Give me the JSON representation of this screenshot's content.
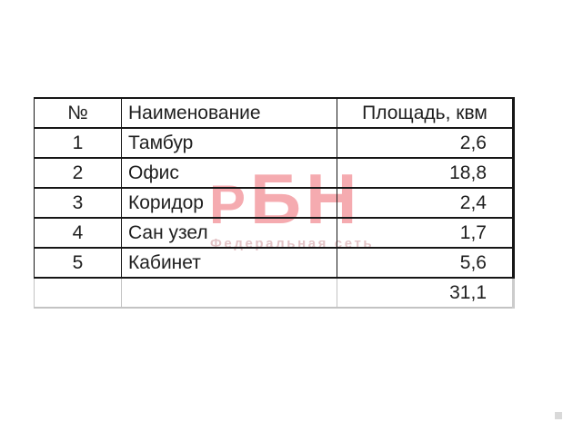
{
  "page": {
    "background": "#ffffff",
    "border_color": "#161616",
    "muted_border_color": "#c3c3c3",
    "text_color": "#1f1f1f"
  },
  "watermark": {
    "logo": "РБН",
    "subtitle": "Федеральная сеть",
    "logo_color": "#f5abb0",
    "subtitle_color": "#e3c3c6"
  },
  "table": {
    "headers": [
      "№",
      "Наименование",
      "Площадь, квм"
    ],
    "rows": [
      [
        "1",
        "Тамбур",
        "2,6"
      ],
      [
        "2",
        "Офис",
        "18,8"
      ],
      [
        "3",
        "Коридор",
        "2,4"
      ],
      [
        "4",
        "Сан узел",
        "1,7"
      ],
      [
        "5",
        "Кабинет",
        "5,6"
      ]
    ],
    "total": "31,1"
  }
}
